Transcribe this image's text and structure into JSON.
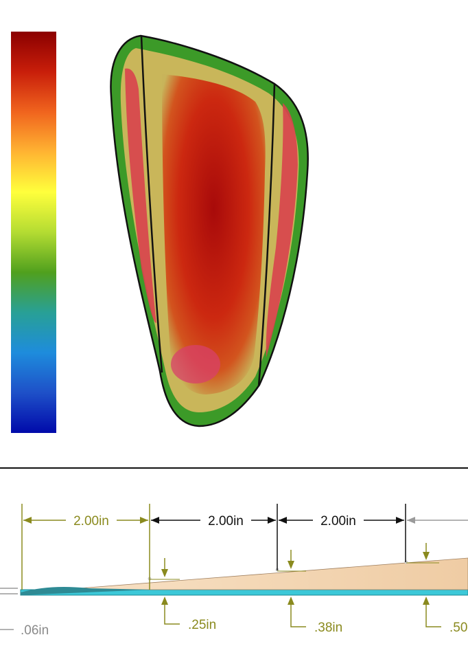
{
  "color_scale": {
    "stops": [
      "#8b0000",
      "#c81e0a",
      "#f0641e",
      "#ffb432",
      "#ffff3c",
      "#b4dc32",
      "#50a01e",
      "#28a096",
      "#1e8cdc",
      "#1e50c8",
      "#000aaa"
    ]
  },
  "dimensions": {
    "spacing": [
      {
        "label": "2.00in",
        "color": "#8a8a1e"
      },
      {
        "label": "2.00in",
        "color": "#111111"
      },
      {
        "label": "2.00in",
        "color": "#111111"
      }
    ],
    "thickness": [
      {
        "label": ".06in",
        "color": "#8a8a8a"
      },
      {
        "label": ".25in",
        "color": "#8a8a1e"
      },
      {
        "label": ".38in",
        "color": "#8a8a1e"
      },
      {
        "label": ".50",
        "color": "#8a8a1e"
      }
    ]
  },
  "colors": {
    "olive": "#8a8a1e",
    "black": "#111111",
    "wood": "#f2d2ae",
    "skin": "#3cc8d8",
    "divider": "#111111"
  }
}
